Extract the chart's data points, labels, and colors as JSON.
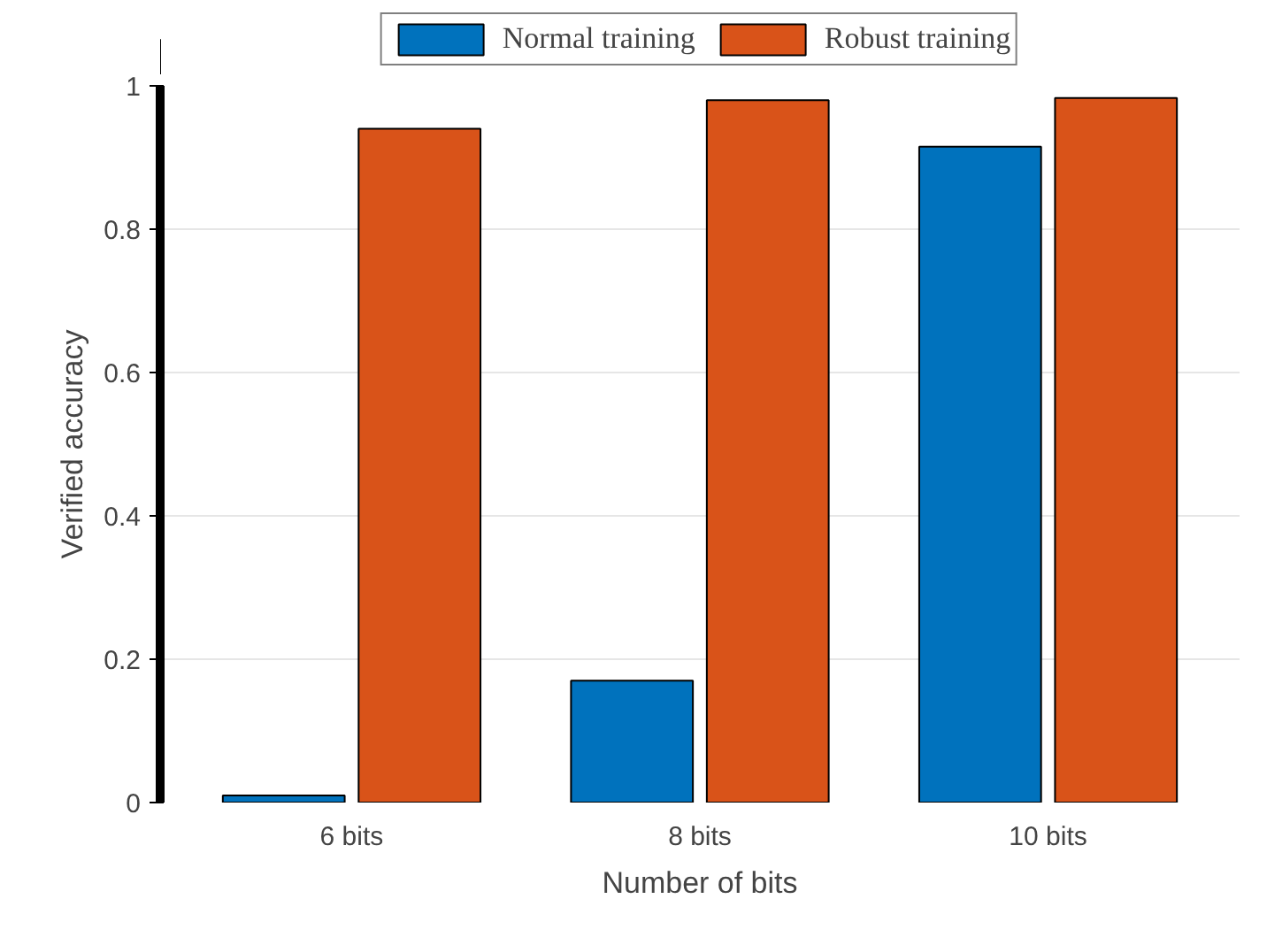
{
  "chart_data": {
    "type": "bar",
    "xlabel": "Number of bits",
    "ylabel": "Verified accuracy",
    "categories": [
      "6 bits",
      "8 bits",
      "10 bits"
    ],
    "series": [
      {
        "name": "Normal training",
        "color": "#0072bd",
        "values": [
          0.01,
          0.17,
          0.915
        ]
      },
      {
        "name": "Robust training",
        "color": "#d95319",
        "values": [
          0.94,
          0.98,
          0.983
        ]
      }
    ],
    "ylim": [
      0,
      1
    ],
    "yticks": [
      0,
      0.2,
      0.4,
      0.6,
      0.8,
      1
    ],
    "grid": "y",
    "legend": "top"
  }
}
